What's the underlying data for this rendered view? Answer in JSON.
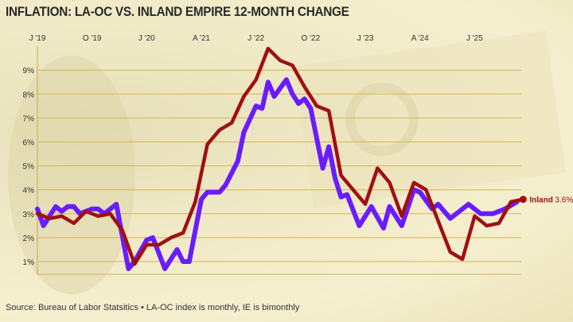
{
  "title": "INFLATION: LA-OC VS. INLAND EMPIRE 12-MONTH CHANGE",
  "source": "Source: Bureau of Labor Statsitics • LA-OC index is monthly, IE is bimonthly",
  "chart_data": {
    "type": "line",
    "title": "INFLATION: LA-OC VS. INLAND EMPIRE 12-MONTH CHANGE",
    "xlabel": "",
    "ylabel": "",
    "x_ticks": [
      {
        "label": "J '19",
        "date": "2019-01"
      },
      {
        "label": "O '19",
        "date": "2019-10"
      },
      {
        "label": "J '20",
        "date": "2020-07"
      },
      {
        "label": "A '21",
        "date": "2021-04"
      },
      {
        "label": "J '22",
        "date": "2022-01"
      },
      {
        "label": "O '22",
        "date": "2022-10"
      },
      {
        "label": "J '23",
        "date": "2023-07"
      },
      {
        "label": "A '24",
        "date": "2024-04"
      },
      {
        "label": "J '25",
        "date": "2025-01"
      }
    ],
    "y_ticks": [
      "1%",
      "2%",
      "3%",
      "4%",
      "5%",
      "6%",
      "7%",
      "8%",
      "9%"
    ],
    "ylim": [
      0.7,
      10
    ],
    "grid": "horizontal",
    "series": [
      {
        "color": "#6a1cff",
        "points": [
          [
            "2019-01",
            3.2
          ],
          [
            "2019-02",
            2.5
          ],
          [
            "2019-04",
            3.3
          ],
          [
            "2019-05",
            3.1
          ],
          [
            "2019-06",
            3.3
          ],
          [
            "2019-07",
            3.3
          ],
          [
            "2019-08",
            3.0
          ],
          [
            "2019-10",
            3.2
          ],
          [
            "2019-11",
            3.2
          ],
          [
            "2019-12",
            3.0
          ],
          [
            "2020-02",
            3.4
          ],
          [
            "2020-04",
            0.7
          ],
          [
            "2020-05",
            1.0
          ],
          [
            "2020-07",
            1.9
          ],
          [
            "2020-08",
            2.0
          ],
          [
            "2020-10",
            0.7
          ],
          [
            "2020-12",
            1.5
          ],
          [
            "2021-01",
            1.0
          ],
          [
            "2021-02",
            1.0
          ],
          [
            "2021-04",
            3.6
          ],
          [
            "2021-05",
            3.9
          ],
          [
            "2021-07",
            3.9
          ],
          [
            "2021-08",
            4.2
          ],
          [
            "2021-10",
            5.2
          ],
          [
            "2021-11",
            6.4
          ],
          [
            "2022-01",
            7.5
          ],
          [
            "2022-02",
            7.4
          ],
          [
            "2022-03",
            8.5
          ],
          [
            "2022-04",
            7.9
          ],
          [
            "2022-06",
            8.6
          ],
          [
            "2022-07",
            8.0
          ],
          [
            "2022-08",
            7.6
          ],
          [
            "2022-09",
            7.8
          ],
          [
            "2022-10",
            7.4
          ],
          [
            "2022-12",
            4.9
          ],
          [
            "2023-01",
            5.8
          ],
          [
            "2023-02",
            4.5
          ],
          [
            "2023-03",
            3.7
          ],
          [
            "2023-04",
            3.8
          ],
          [
            "2023-06",
            2.5
          ],
          [
            "2023-08",
            3.3
          ],
          [
            "2023-10",
            2.4
          ],
          [
            "2023-11",
            3.3
          ],
          [
            "2024-01",
            2.5
          ],
          [
            "2024-03",
            4.0
          ],
          [
            "2024-04",
            3.9
          ],
          [
            "2024-06",
            3.2
          ],
          [
            "2024-07",
            3.4
          ],
          [
            "2024-09",
            2.8
          ],
          [
            "2024-12",
            3.4
          ],
          [
            "2025-02",
            3.0
          ],
          [
            "2025-04",
            3.0
          ],
          [
            "2025-06",
            3.2
          ],
          [
            "2025-08",
            3.5
          ]
        ]
      },
      {
        "name": "Inland",
        "end_label": "Inland",
        "end_value": "3.6%",
        "color": "#a01010",
        "points": [
          [
            "2019-01",
            3.0
          ],
          [
            "2019-03",
            2.8
          ],
          [
            "2019-05",
            2.9
          ],
          [
            "2019-07",
            2.6
          ],
          [
            "2019-09",
            3.1
          ],
          [
            "2019-11",
            2.9
          ],
          [
            "2020-01",
            3.0
          ],
          [
            "2020-03",
            2.3
          ],
          [
            "2020-05",
            0.9
          ],
          [
            "2020-07",
            1.7
          ],
          [
            "2020-09",
            1.7
          ],
          [
            "2020-11",
            2.0
          ],
          [
            "2021-01",
            2.2
          ],
          [
            "2021-03",
            3.5
          ],
          [
            "2021-05",
            5.9
          ],
          [
            "2021-07",
            6.5
          ],
          [
            "2021-09",
            6.8
          ],
          [
            "2021-11",
            7.9
          ],
          [
            "2022-01",
            8.6
          ],
          [
            "2022-03",
            9.9
          ],
          [
            "2022-05",
            9.4
          ],
          [
            "2022-07",
            9.2
          ],
          [
            "2022-09",
            8.3
          ],
          [
            "2022-11",
            7.5
          ],
          [
            "2023-01",
            7.3
          ],
          [
            "2023-03",
            4.6
          ],
          [
            "2023-07",
            3.4
          ],
          [
            "2023-09",
            4.9
          ],
          [
            "2023-11",
            4.3
          ],
          [
            "2024-01",
            2.9
          ],
          [
            "2024-03",
            4.3
          ],
          [
            "2024-05",
            4.0
          ],
          [
            "2024-09",
            1.4
          ],
          [
            "2024-11",
            1.1
          ],
          [
            "2025-01",
            2.9
          ],
          [
            "2025-03",
            2.5
          ],
          [
            "2025-05",
            2.6
          ],
          [
            "2025-07",
            3.5
          ],
          [
            "2025-09",
            3.6
          ]
        ]
      }
    ]
  }
}
